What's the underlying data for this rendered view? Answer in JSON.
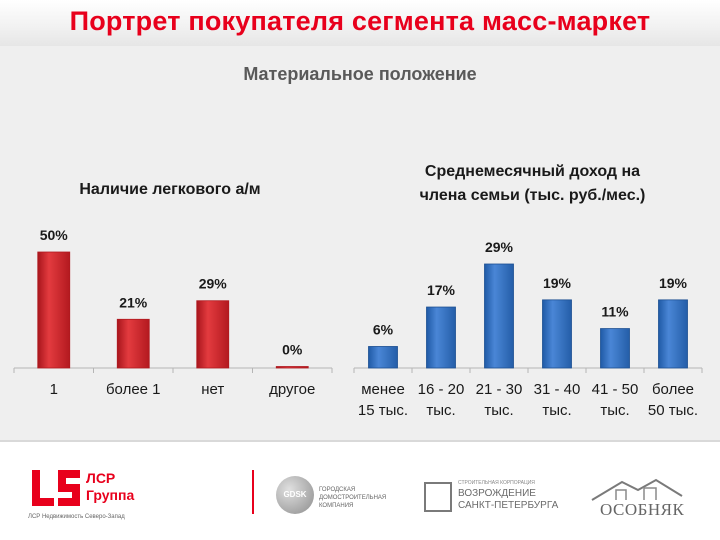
{
  "title": "Портрет покупателя сегмента масс-маркет",
  "subtitle": "Материальное положение",
  "colors": {
    "title": "#e8001c",
    "red_bars": "#d2232a",
    "blue_bars": "#2f6dc0",
    "background": "#efefef"
  },
  "chart_data": [
    {
      "type": "bar",
      "title": "Наличие легкового а/м",
      "categories": [
        [
          "1"
        ],
        [
          "более 1"
        ],
        [
          "нет"
        ],
        [
          "другое"
        ]
      ],
      "values": [
        50,
        21,
        29,
        0
      ],
      "data_labels": [
        "50%",
        "21%",
        "29%",
        "0%"
      ],
      "ylim": [
        0,
        50
      ],
      "unit": "%",
      "color": "#d2232a",
      "grid": false
    },
    {
      "type": "bar",
      "title": "Среднемесячный доход на члена семьи (тыс. руб./мес.)",
      "title_lines": [
        "Среднемесячный доход на",
        "члена семьи (тыс. руб./мес.)"
      ],
      "categories": [
        [
          "менее",
          "15 тыс."
        ],
        [
          "16 - 20",
          "тыс."
        ],
        [
          "21 - 30",
          "тыс."
        ],
        [
          "31 - 40",
          "тыс."
        ],
        [
          "41 - 50",
          "тыс."
        ],
        [
          "более",
          "50 тыс."
        ]
      ],
      "values": [
        6,
        17,
        29,
        19,
        11,
        19
      ],
      "data_labels": [
        "6%",
        "17%",
        "29%",
        "19%",
        "11%",
        "19%"
      ],
      "ylim": [
        0,
        29
      ],
      "unit": "%",
      "color": "#2f6dc0",
      "grid": false
    }
  ],
  "footer": {
    "lsr": {
      "name_line1": "ЛСР",
      "name_line2": "Группа",
      "tagline": "ЛСР Недвижимость Северо-Запад"
    },
    "gdsk": {
      "mark": "GDSK",
      "text": "ГОРОДСКАЯ ДОМОСТРОИТЕЛЬНАЯ КОМПАНИЯ"
    },
    "vozrozhdenie": {
      "small": "СТРОИТЕЛЬНАЯ КОРПОРАЦИЯ",
      "line1": "ВОЗРОЖДЕНИЕ",
      "line2": "САНКТ-ПЕТЕРБУРГА"
    },
    "osobnyak": {
      "name": "ОСОБНЯК"
    }
  }
}
